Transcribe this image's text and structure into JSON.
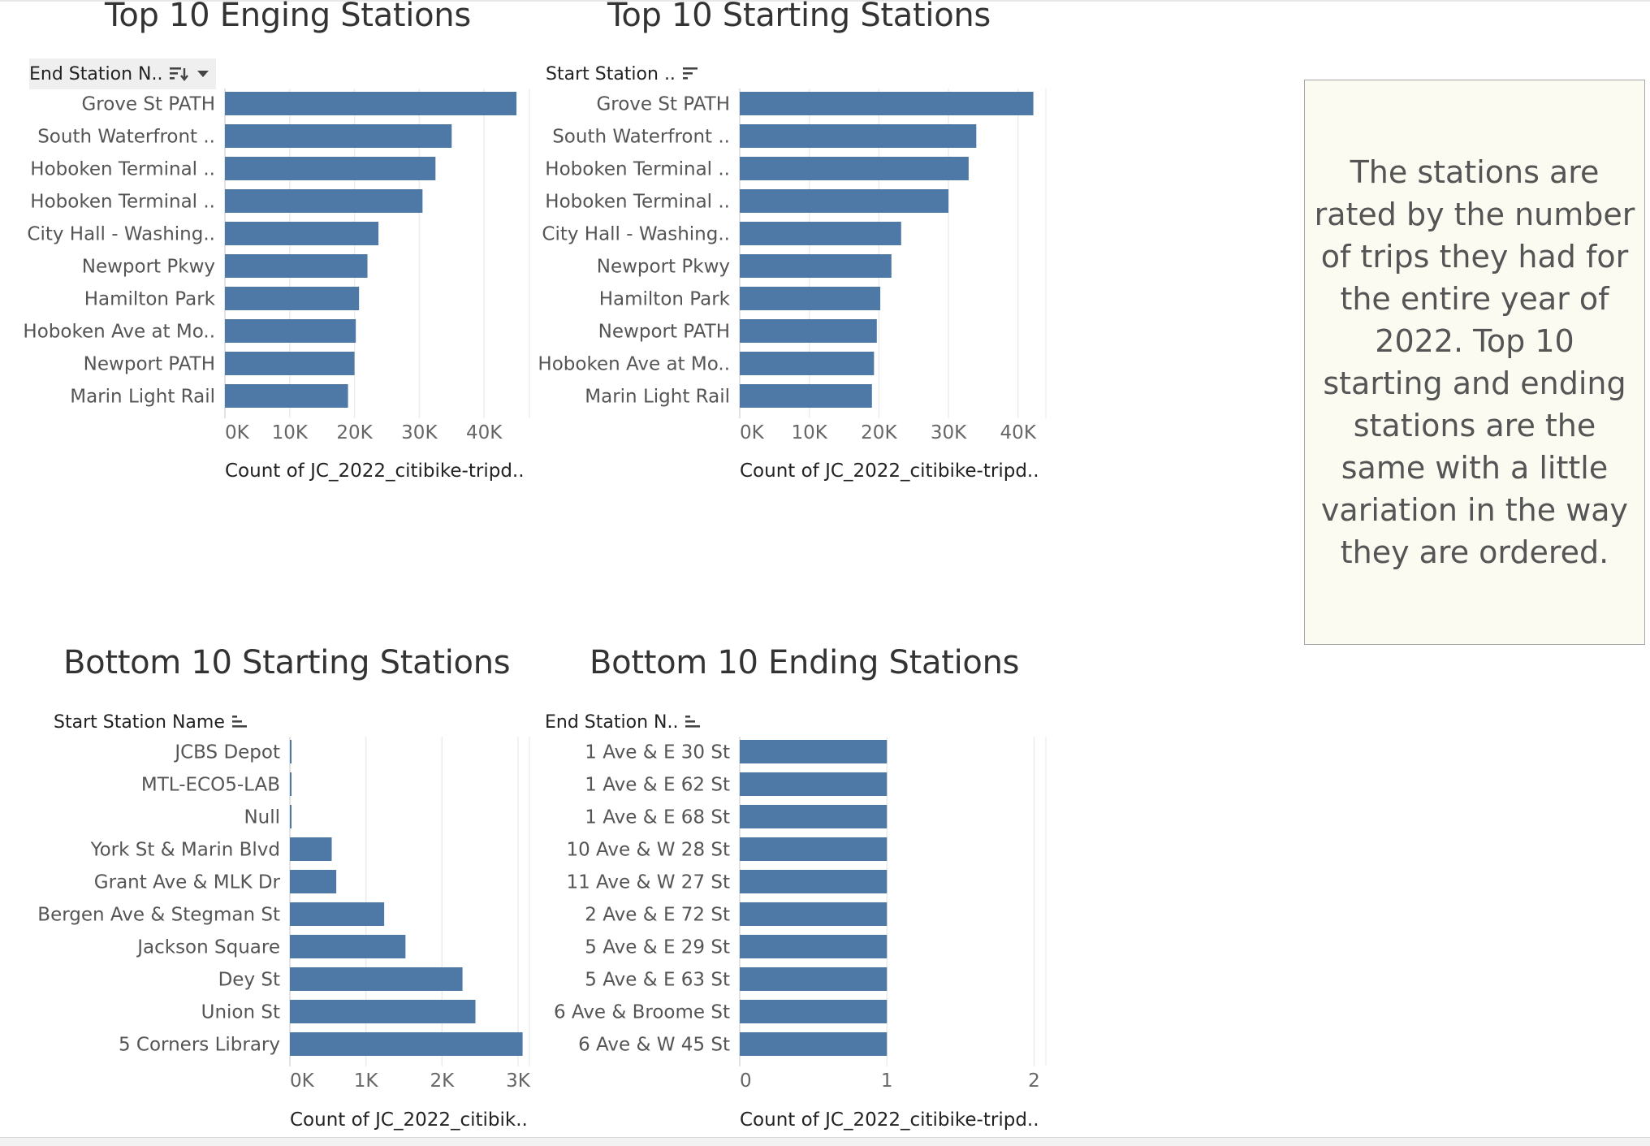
{
  "note": {
    "text": "The stations are rated by the number of trips they had for the entire year of 2022. Top 10 starting and ending stations are the same with a little variation in the way they are ordered."
  },
  "chart_data": [
    {
      "id": "top-ending",
      "type": "bar",
      "orientation": "horizontal",
      "title": "Top 10 Enging Stations",
      "dimension_label": "End Station N..",
      "xlabel": "Count of JC_2022_citibike-tripd..",
      "categories": [
        "Grove St PATH",
        "South Waterfront ..",
        "Hoboken Terminal ..",
        "Hoboken Terminal ..",
        "City Hall - Washing..",
        "Newport Pkwy",
        "Hamilton Park",
        "Hoboken Ave at Mo..",
        "Newport PATH",
        "Marin Light Rail"
      ],
      "values": [
        45000,
        35000,
        32500,
        30500,
        23700,
        22000,
        20700,
        20200,
        20000,
        19000
      ],
      "ticks": [
        0,
        10000,
        20000,
        30000,
        40000
      ],
      "tick_labels": [
        "0K",
        "10K",
        "20K",
        "30K",
        "40K"
      ],
      "xlim": [
        0,
        47000
      ],
      "color": "#4e79a7"
    },
    {
      "id": "top-starting",
      "type": "bar",
      "orientation": "horizontal",
      "title": "Top 10 Starting Stations",
      "dimension_label": "Start Station ..",
      "xlabel": "Count of JC_2022_citibike-tripd..",
      "categories": [
        "Grove St PATH",
        "South Waterfront ..",
        "Hoboken Terminal ..",
        "Hoboken Terminal ..",
        "City Hall - Washing..",
        "Newport Pkwy",
        "Hamilton Park",
        "Newport PATH",
        "Hoboken Ave at Mo..",
        "Marin Light Rail"
      ],
      "values": [
        42200,
        34000,
        32900,
        30000,
        23200,
        21800,
        20200,
        19700,
        19300,
        19000
      ],
      "ticks": [
        0,
        10000,
        20000,
        30000,
        40000
      ],
      "tick_labels": [
        "0K",
        "10K",
        "20K",
        "30K",
        "40K"
      ],
      "xlim": [
        0,
        44000
      ],
      "color": "#4e79a7"
    },
    {
      "id": "bottom-starting",
      "type": "bar",
      "orientation": "horizontal",
      "title": "Bottom 10 Starting Stations",
      "dimension_label": "Start Station Name",
      "xlabel": "Count of JC_2022_citibik..",
      "categories": [
        "JCBS Depot",
        "MTL-ECO5-LAB",
        "Null",
        "York St & Marin Blvd",
        "Grant Ave & MLK Dr",
        "Bergen Ave & Stegman St",
        "Jackson Square",
        "Dey St",
        "Union St",
        "5 Corners Library"
      ],
      "values": [
        1,
        1,
        1,
        550,
        610,
        1240,
        1520,
        2270,
        2440,
        3060
      ],
      "ticks": [
        0,
        1000,
        2000,
        3000
      ],
      "tick_labels": [
        "0K",
        "1K",
        "2K",
        "3K"
      ],
      "xlim": [
        0,
        3150
      ],
      "color": "#4e79a7"
    },
    {
      "id": "bottom-ending",
      "type": "bar",
      "orientation": "horizontal",
      "title": "Bottom 10 Ending Stations",
      "dimension_label": "End Station N..",
      "xlabel": "Count of JC_2022_citibike-tripd..",
      "categories": [
        "1 Ave & E 30 St",
        "1 Ave & E 62 St",
        "1 Ave & E 68 St",
        "10 Ave & W 28 St",
        "11 Ave & W 27 St",
        "2 Ave & E 72 St",
        "5 Ave & E 29 St",
        "5 Ave & E 63 St",
        "6 Ave & Broome St",
        "6 Ave & W 45 St"
      ],
      "values": [
        1,
        1,
        1,
        1,
        1,
        1,
        1,
        1,
        1,
        1
      ],
      "ticks": [
        0,
        1,
        2
      ],
      "tick_labels": [
        "0",
        "1",
        "2"
      ],
      "xlim": [
        0,
        2.08
      ],
      "color": "#4e79a7"
    }
  ]
}
